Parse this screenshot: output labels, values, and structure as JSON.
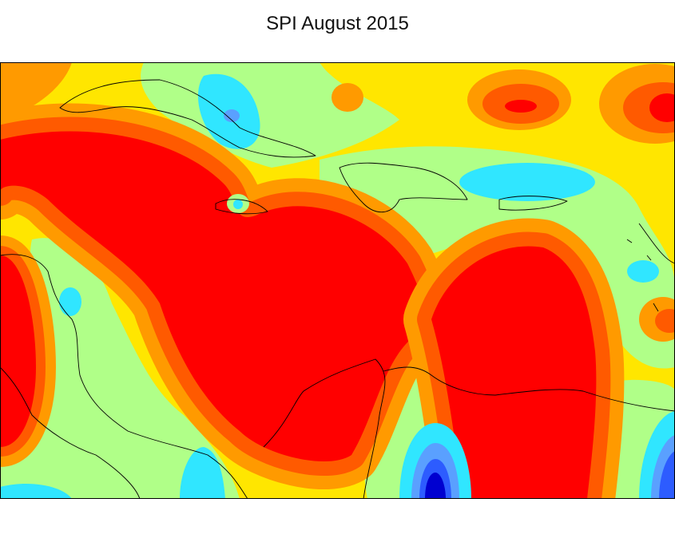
{
  "title": "SPI August 2015"
}
